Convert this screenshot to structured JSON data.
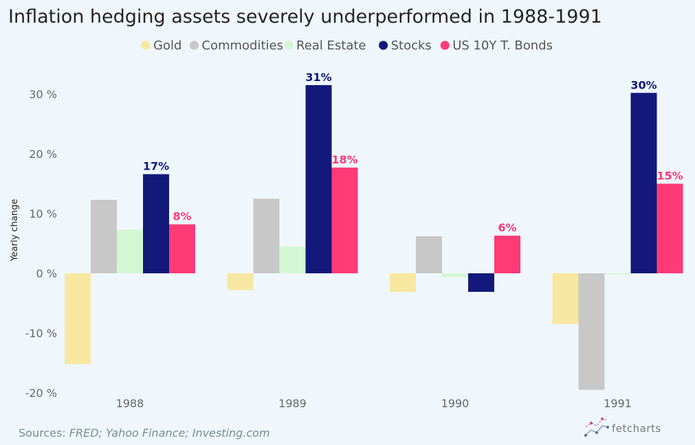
{
  "chart_data": {
    "type": "bar",
    "title": "Inflation hedging assets severely underperformed in 1988-1991",
    "ylabel": "Yearly change",
    "xlabel": "",
    "categories": [
      "1988",
      "1989",
      "1990",
      "1991"
    ],
    "ylim": [
      -20,
      33
    ],
    "yticks": [
      30,
      20,
      10,
      0,
      -10,
      -20
    ],
    "ytick_labels": [
      "30 %",
      "20 %",
      "10 %",
      "0 %",
      "-10 %",
      "-20 %"
    ],
    "legend_position": "top-center",
    "grid": false,
    "series": [
      {
        "name": "Gold",
        "color": "#f8e7a0",
        "values": [
          -15.2,
          -2.8,
          -3.1,
          -8.5
        ],
        "labels": [
          "",
          "",
          "",
          ""
        ]
      },
      {
        "name": "Commodities",
        "color": "#c8c8c8",
        "values": [
          12.3,
          12.5,
          6.2,
          -19.5
        ],
        "labels": [
          "",
          "",
          "",
          ""
        ]
      },
      {
        "name": "Real Estate",
        "color": "#d2f7d2",
        "values": [
          7.3,
          4.5,
          -0.6,
          -0.2
        ],
        "labels": [
          "",
          "",
          "",
          ""
        ]
      },
      {
        "name": "Stocks",
        "color": "#12197a",
        "values": [
          16.6,
          31.5,
          -3.1,
          30.2
        ],
        "labels": [
          "17%",
          "31%",
          "",
          "30%"
        ]
      },
      {
        "name": "US 10Y T. Bonds",
        "color": "#ff3a77",
        "values": [
          8.2,
          17.7,
          6.3,
          15.0
        ],
        "labels": [
          "8%",
          "18%",
          "6%",
          "15%"
        ]
      }
    ]
  },
  "footer": {
    "source_prefix": "Sources: ",
    "source_text": "FRED; Yahoo Finance; Investing.com",
    "brand": "fetcharts"
  }
}
